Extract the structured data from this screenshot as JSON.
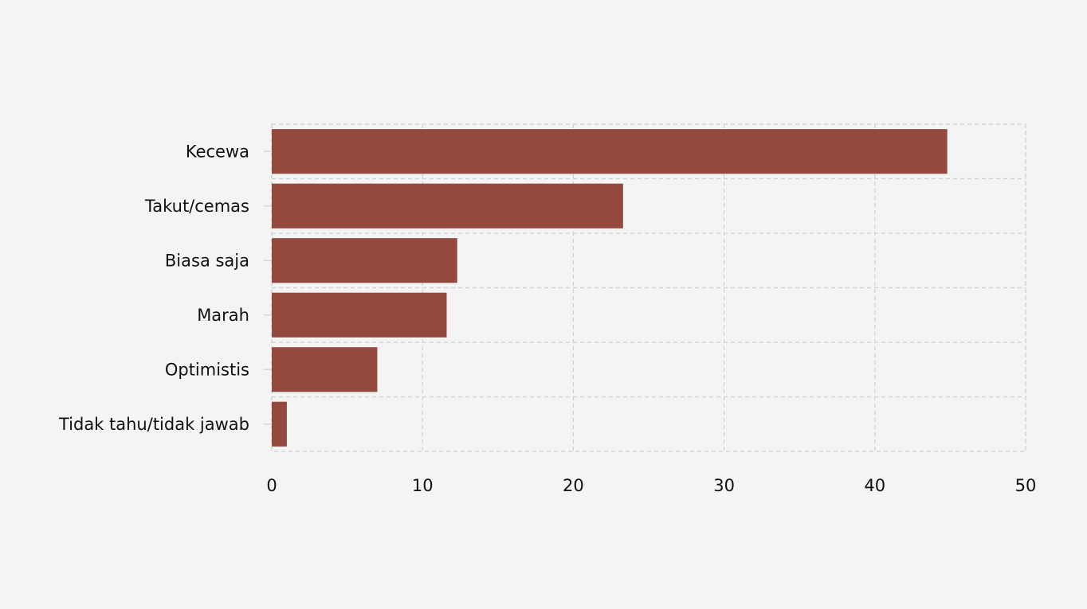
{
  "chart_data": {
    "type": "bar",
    "orientation": "horizontal",
    "title": "",
    "xlabel": "",
    "ylabel": "",
    "categories": [
      "Kecewa",
      "Takut/cemas",
      "Biasa saja",
      "Marah",
      "Optimistis",
      "Tidak tahu/tidak jawab"
    ],
    "values": [
      44.8,
      23.3,
      12.3,
      11.6,
      7.0,
      1.0
    ],
    "xlim": [
      0,
      50
    ],
    "xticks": [
      0,
      10,
      20,
      30,
      40,
      50
    ],
    "xtick_labels": [
      "0",
      "10",
      "20",
      "30",
      "40",
      "50"
    ],
    "grid": true,
    "legend": "none",
    "bar_color": "#8b3a2f",
    "background_color": "#f4f4f4"
  }
}
